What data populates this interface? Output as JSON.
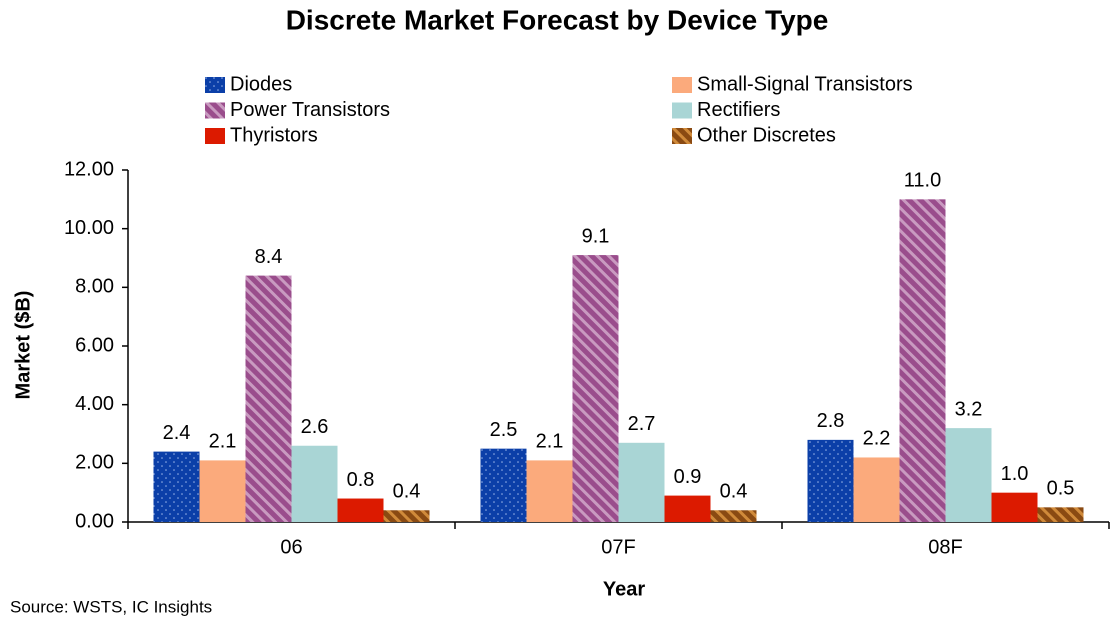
{
  "chart_data": {
    "type": "bar",
    "title": "Discrete Market Forecast by Device Type",
    "y_label": "Market ($B)",
    "x_label": "Year",
    "source": "Source: WSTS, IC Insights",
    "categories": [
      "06",
      "07F",
      "08F"
    ],
    "ylim": [
      0,
      12
    ],
    "yticks": [
      {
        "value": 0,
        "label": "0.00"
      },
      {
        "value": 2,
        "label": "2.00"
      },
      {
        "value": 4,
        "label": "4.00"
      },
      {
        "value": 6,
        "label": "6.00"
      },
      {
        "value": 8,
        "label": "8.00"
      },
      {
        "value": 10,
        "label": "10.00"
      },
      {
        "value": 12,
        "label": "12.00"
      }
    ],
    "grid": false,
    "series": [
      {
        "name": "Diodes",
        "color": "#0b3fa8",
        "pattern": "dots",
        "values": [
          2.4,
          2.5,
          2.8
        ],
        "value_labels": [
          "2.4",
          "2.5",
          "2.8"
        ]
      },
      {
        "name": "Small-Signal Transistors",
        "color": "#fbaa7c",
        "values": [
          2.1,
          2.1,
          2.2
        ],
        "value_labels": [
          "2.1",
          "2.1",
          "2.2"
        ]
      },
      {
        "name": "Power Transistors",
        "color": "#9a4d8c",
        "pattern": "stripes",
        "values": [
          8.4,
          9.1,
          11.0
        ],
        "value_labels": [
          "8.4",
          "9.1",
          "11.0"
        ]
      },
      {
        "name": "Rectifiers",
        "color": "#a9d5d5",
        "values": [
          2.6,
          2.7,
          3.2
        ],
        "value_labels": [
          "2.6",
          "2.7",
          "3.2"
        ]
      },
      {
        "name": "Thyristors",
        "color": "#dc1a00",
        "values": [
          0.8,
          0.9,
          1.0
        ],
        "value_labels": [
          "0.8",
          "0.9",
          "1.0"
        ]
      },
      {
        "name": "Other Discretes",
        "color": "#8a4a12",
        "pattern": "stripes",
        "values": [
          0.4,
          0.4,
          0.5
        ],
        "value_labels": [
          "0.4",
          "0.4",
          "0.5"
        ]
      }
    ]
  }
}
